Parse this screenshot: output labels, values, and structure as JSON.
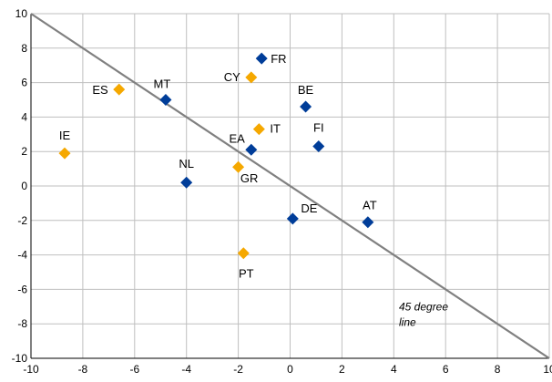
{
  "chart_data": {
    "type": "scatter",
    "title": "",
    "xlabel": "",
    "ylabel": "",
    "xlim": [
      -10,
      10
    ],
    "ylim": [
      -10,
      10
    ],
    "x_ticks": [
      "-10",
      "-8",
      "-6",
      "-4",
      "-2",
      "0",
      "2",
      "4",
      "6",
      "8",
      "10"
    ],
    "y_ticks": [
      "10",
      "8",
      "6",
      "4",
      "2",
      "0",
      "-2",
      "-4",
      "-6",
      "-8",
      "-10"
    ],
    "grid": true,
    "legend": "none",
    "reference_line": {
      "label_line1": "45 degree",
      "label_line2": "line",
      "from": [
        -10,
        10
      ],
      "to": [
        10,
        -10
      ],
      "color": "#808080"
    },
    "colors": {
      "blue": "#003d99",
      "orange": "#f5a800",
      "grid": "#bfbfbf",
      "axis": "#000000"
    },
    "points": [
      {
        "label": "FR",
        "x": -1.1,
        "y": 7.4,
        "color": "blue"
      },
      {
        "label": "CY",
        "x": -1.5,
        "y": 6.3,
        "color": "orange"
      },
      {
        "label": "ES",
        "x": -6.6,
        "y": 5.6,
        "color": "orange"
      },
      {
        "label": "MT",
        "x": -4.8,
        "y": 5.0,
        "color": "blue"
      },
      {
        "label": "BE",
        "x": 0.6,
        "y": 4.6,
        "color": "blue"
      },
      {
        "label": "IT",
        "x": -1.2,
        "y": 3.3,
        "color": "orange"
      },
      {
        "label": "FI",
        "x": 1.1,
        "y": 2.3,
        "color": "blue"
      },
      {
        "label": "EA",
        "x": -1.5,
        "y": 2.1,
        "color": "blue"
      },
      {
        "label": "IE",
        "x": -8.7,
        "y": 1.9,
        "color": "orange"
      },
      {
        "label": "GR",
        "x": -2.0,
        "y": 1.1,
        "color": "orange"
      },
      {
        "label": "NL",
        "x": -4.0,
        "y": 0.2,
        "color": "blue"
      },
      {
        "label": "DE",
        "x": 0.1,
        "y": -1.9,
        "color": "blue"
      },
      {
        "label": "AT",
        "x": 3.0,
        "y": -2.1,
        "color": "blue"
      },
      {
        "label": "PT",
        "x": -1.8,
        "y": -3.9,
        "color": "orange"
      }
    ]
  }
}
